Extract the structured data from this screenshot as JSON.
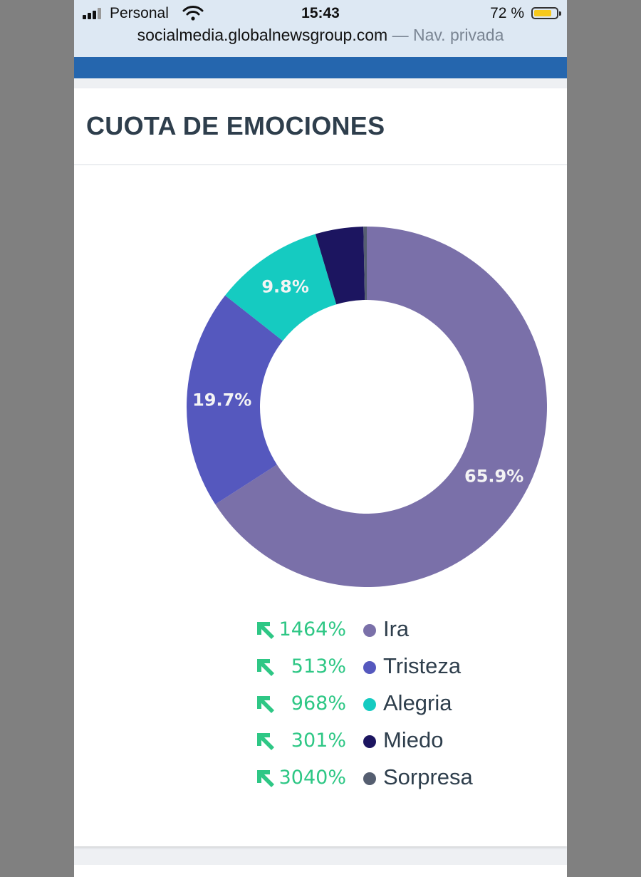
{
  "status_bar": {
    "carrier": "Personal",
    "time": "15:43",
    "battery_percent": "72 %"
  },
  "browser": {
    "url": "socialmedia.globalnewsgroup.com",
    "mode": "— Nav. privada"
  },
  "card": {
    "title": "CUOTA DE EMOCIONES"
  },
  "chart_data": {
    "type": "pie",
    "donut": true,
    "start_angle_deg": 0,
    "direction": "clockwise",
    "categories": [
      "Ira",
      "Tristeza",
      "Alegria",
      "Miedo",
      "Sorpresa"
    ],
    "values": [
      65.9,
      19.7,
      9.8,
      4.3,
      0.3
    ],
    "slice_labels": [
      "65.9%",
      "19.7%",
      "9.8%",
      "",
      ""
    ],
    "colors": [
      "#7a70a9",
      "#5558be",
      "#15cbc1",
      "#1c1560",
      "#555e70"
    ],
    "legend": [
      {
        "change": "1464%",
        "label": "Ira"
      },
      {
        "change": "513%",
        "label": "Tristeza"
      },
      {
        "change": "968%",
        "label": "Alegria"
      },
      {
        "change": "301%",
        "label": "Miedo"
      },
      {
        "change": "3040%",
        "label": "Sorpresa"
      }
    ],
    "legend_position": "bottom",
    "trend_color": "#2ec785",
    "trend_icon": "arrow-up-left-icon"
  }
}
